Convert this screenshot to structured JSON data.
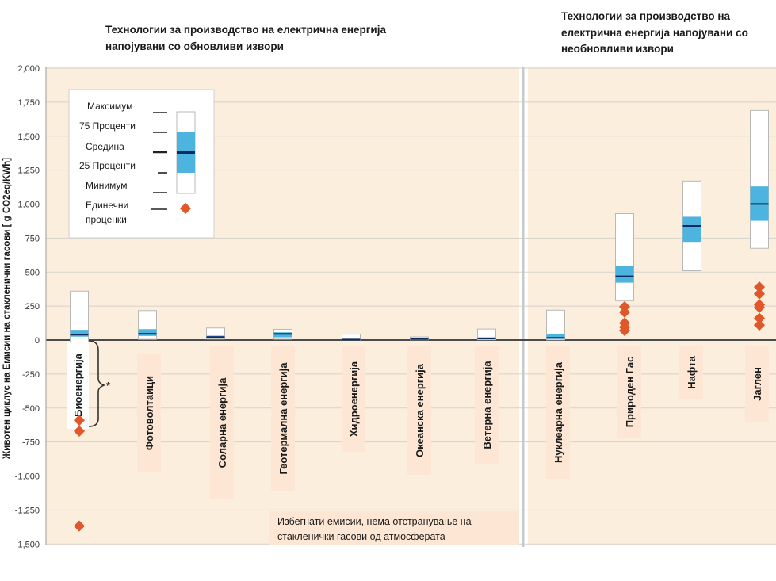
{
  "chart_data": {
    "type": "boxplot",
    "ylabel": "Животен циклус  на Емисии на стакленички гасови [ g CO2eq/KWh]",
    "ylim": [
      -1500,
      2000
    ],
    "yticks": [
      2000,
      1750,
      1500,
      1250,
      1000,
      750,
      500,
      250,
      0,
      -250,
      -500,
      -750,
      -1000,
      -1250,
      -1500
    ],
    "ytick_labels": [
      "2,000",
      "1,750",
      "1,500",
      "1,250",
      "1,000",
      "750",
      "500",
      "250",
      "0",
      "-250",
      "-500",
      "-750",
      "-1,000",
      "-1,250",
      "-1,500"
    ],
    "panels": [
      {
        "title_lines": [
          "Технологии за производство на електрична енергија",
          "напојувани со обновливи извори"
        ]
      },
      {
        "title_lines": [
          "Технологии за производство на",
          "електрична енергија напојувани со",
          "необновливи извори"
        ]
      }
    ],
    "legend": {
      "max": "Максимум",
      "p75": "75 Проценти",
      "median": "Средина",
      "p25": "25 Проценти",
      "min": "Минимум",
      "single_lines": [
        "Единечни",
        "проценки"
      ]
    },
    "series": [
      {
        "name": "Биоенергија",
        "panel": 0,
        "min": -633,
        "q1": 25,
        "median": 40,
        "q3": 75,
        "max": 360,
        "singles": [
          -590,
          -670,
          -1368
        ]
      },
      {
        "name": "Фотоволтаици",
        "panel": 0,
        "min": 5,
        "q1": 30,
        "median": 46,
        "q3": 80,
        "max": 217,
        "singles": []
      },
      {
        "name": "Соларна енергија",
        "panel": 0,
        "min": 7,
        "q1": 14,
        "median": 22,
        "q3": 32,
        "max": 89,
        "singles": []
      },
      {
        "name": "Геотермална енергија",
        "panel": 0,
        "min": 6,
        "q1": 20,
        "median": 45,
        "q3": 57,
        "max": 79,
        "singles": []
      },
      {
        "name": "Хидроенергија",
        "panel": 0,
        "min": 0,
        "q1": 3,
        "median": 4,
        "q3": 7,
        "max": 43,
        "singles": []
      },
      {
        "name": "Океанска енергија",
        "panel": 0,
        "min": 2,
        "q1": 6,
        "median": 8,
        "q3": 9,
        "max": 23,
        "singles": []
      },
      {
        "name": "Ветерна енергија",
        "panel": 0,
        "min": 2,
        "q1": 8,
        "median": 12,
        "q3": 20,
        "max": 81,
        "singles": []
      },
      {
        "name": "Нуклеарна енергија",
        "panel": 1,
        "min": 1,
        "q1": 8,
        "median": 16,
        "q3": 45,
        "max": 220,
        "singles": []
      },
      {
        "name": "Природен Гас",
        "panel": 1,
        "min": 290,
        "q1": 422,
        "median": 469,
        "q3": 548,
        "max": 930,
        "singles": [
          245,
          205,
          125,
          95,
          70
        ]
      },
      {
        "name": "Нафта",
        "panel": 1,
        "min": 510,
        "q1": 722,
        "median": 840,
        "q3": 907,
        "max": 1170,
        "singles": []
      },
      {
        "name": "Јаглен",
        "panel": 1,
        "min": 675,
        "q1": 877,
        "median": 1001,
        "q3": 1130,
        "max": 1689,
        "singles": [
          390,
          340,
          260,
          240,
          160,
          110
        ]
      }
    ],
    "bracket_marker": "*",
    "annotation_lines": [
      "Избегнати емисии, нема отстранување на",
      "стакленички гасови од атмосферата"
    ]
  }
}
